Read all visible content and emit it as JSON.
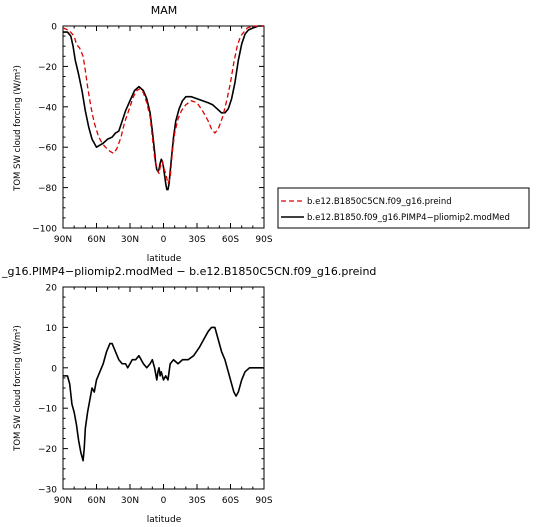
{
  "chart_data": [
    {
      "type": "line",
      "title": "MAM",
      "xlabel": "latitude",
      "ylabel": "TOM SW cloud forcing (W/m²)",
      "xlim": [
        90,
        -90
      ],
      "ylim": [
        -100,
        0
      ],
      "x_ticks": [
        90,
        60,
        30,
        0,
        -30,
        -60,
        -90
      ],
      "x_tick_labels": [
        "90N",
        "60N",
        "30N",
        "0",
        "30S",
        "60S",
        "90S"
      ],
      "y_ticks": [
        0,
        -20,
        -40,
        -60,
        -80,
        -100
      ],
      "y_tick_labels": [
        "0",
        "−20",
        "−40",
        "−60",
        "−80",
        "−100"
      ],
      "legend_position": "right",
      "series": [
        {
          "name": "b.e12.B1850C5CN.f09_g16.preind",
          "color": "#dd0000",
          "dash": "dashed",
          "points": [
            [
              90,
              -1
            ],
            [
              85,
              -2
            ],
            [
              80,
              -5
            ],
            [
              78,
              -9
            ],
            [
              75,
              -11
            ],
            [
              72,
              -15
            ],
            [
              70,
              -22
            ],
            [
              68,
              -30
            ],
            [
              65,
              -40
            ],
            [
              62,
              -48
            ],
            [
              58,
              -55
            ],
            [
              55,
              -58
            ],
            [
              52,
              -60
            ],
            [
              48,
              -62
            ],
            [
              45,
              -63
            ],
            [
              42,
              -61
            ],
            [
              38,
              -55
            ],
            [
              35,
              -48
            ],
            [
              30,
              -40
            ],
            [
              27,
              -35
            ],
            [
              24,
              -32
            ],
            [
              21,
              -31
            ],
            [
              18,
              -33
            ],
            [
              15,
              -38
            ],
            [
              12,
              -45
            ],
            [
              10,
              -55
            ],
            [
              8,
              -65
            ],
            [
              6,
              -70
            ],
            [
              5,
              -72
            ],
            [
              4,
              -73
            ],
            [
              3,
              -70
            ],
            [
              2,
              -68
            ],
            [
              1,
              -67
            ],
            [
              0,
              -70
            ],
            [
              -2,
              -73
            ],
            [
              -4,
              -78
            ],
            [
              -6,
              -75
            ],
            [
              -8,
              -62
            ],
            [
              -10,
              -53
            ],
            [
              -13,
              -46
            ],
            [
              -16,
              -42
            ],
            [
              -20,
              -39
            ],
            [
              -25,
              -37
            ],
            [
              -30,
              -38
            ],
            [
              -35,
              -42
            ],
            [
              -40,
              -47
            ],
            [
              -43,
              -51
            ],
            [
              -46,
              -53
            ],
            [
              -49,
              -51
            ],
            [
              -53,
              -45
            ],
            [
              -57,
              -36
            ],
            [
              -60,
              -28
            ],
            [
              -63,
              -18
            ],
            [
              -66,
              -10
            ],
            [
              -69,
              -5
            ],
            [
              -72,
              -3
            ],
            [
              -75,
              -1
            ],
            [
              -80,
              0
            ],
            [
              -85,
              0
            ],
            [
              -90,
              0
            ]
          ]
        },
        {
          "name": "b.e12.B1850.f09_g16.PIMP4−pliomip2.modMed",
          "color": "#000000",
          "dash": "solid",
          "points": [
            [
              90,
              -3
            ],
            [
              86,
              -3
            ],
            [
              83,
              -5
            ],
            [
              81,
              -10
            ],
            [
              79,
              -17
            ],
            [
              76,
              -24
            ],
            [
              73,
              -32
            ],
            [
              70,
              -42
            ],
            [
              67,
              -50
            ],
            [
              64,
              -56
            ],
            [
              60,
              -60
            ],
            [
              57,
              -59
            ],
            [
              54,
              -58
            ],
            [
              50,
              -56
            ],
            [
              46,
              -55
            ],
            [
              43,
              -53
            ],
            [
              40,
              -52
            ],
            [
              37,
              -47
            ],
            [
              34,
              -42
            ],
            [
              30,
              -37
            ],
            [
              26,
              -32
            ],
            [
              22,
              -30
            ],
            [
              18,
              -32
            ],
            [
              15,
              -36
            ],
            [
              12,
              -43
            ],
            [
              10,
              -52
            ],
            [
              8,
              -62
            ],
            [
              7,
              -68
            ],
            [
              6,
              -71
            ],
            [
              5,
              -72
            ],
            [
              4,
              -71
            ],
            [
              3,
              -68
            ],
            [
              2,
              -66
            ],
            [
              1,
              -67
            ],
            [
              0,
              -70
            ],
            [
              -1,
              -74
            ],
            [
              -2,
              -78
            ],
            [
              -3,
              -81
            ],
            [
              -4,
              -81
            ],
            [
              -5,
              -78
            ],
            [
              -7,
              -66
            ],
            [
              -9,
              -55
            ],
            [
              -11,
              -47
            ],
            [
              -14,
              -41
            ],
            [
              -17,
              -37
            ],
            [
              -20,
              -35
            ],
            [
              -25,
              -35
            ],
            [
              -30,
              -36
            ],
            [
              -35,
              -37
            ],
            [
              -40,
              -38
            ],
            [
              -44,
              -39
            ],
            [
              -48,
              -41
            ],
            [
              -52,
              -43
            ],
            [
              -55,
              -43
            ],
            [
              -58,
              -41
            ],
            [
              -61,
              -36
            ],
            [
              -64,
              -28
            ],
            [
              -67,
              -17
            ],
            [
              -70,
              -9
            ],
            [
              -73,
              -4
            ],
            [
              -76,
              -2
            ],
            [
              -80,
              -1
            ],
            [
              -85,
              0
            ],
            [
              -90,
              0
            ]
          ]
        }
      ]
    },
    {
      "type": "line",
      "title": "_g16.PIMP4−pliomip2.modMed − b.e12.B1850C5CN.f09_g16.preind",
      "xlabel": "latitude",
      "ylabel": "TOM SW cloud forcing (W/m²)",
      "xlim": [
        90,
        -90
      ],
      "ylim": [
        -30,
        20
      ],
      "x_ticks": [
        90,
        60,
        30,
        0,
        -30,
        -60,
        -90
      ],
      "x_tick_labels": [
        "90N",
        "60N",
        "30N",
        "0",
        "30S",
        "60S",
        "90S"
      ],
      "y_ticks": [
        20,
        10,
        0,
        -10,
        -20,
        -30
      ],
      "y_tick_labels": [
        "20",
        "10",
        "0",
        "−10",
        "−20",
        "−30"
      ],
      "series": [
        {
          "color": "#000000",
          "dash": "solid",
          "points": [
            [
              90,
              -2
            ],
            [
              86,
              -2
            ],
            [
              84,
              -4
            ],
            [
              82,
              -9
            ],
            [
              80,
              -11
            ],
            [
              78,
              -14
            ],
            [
              76,
              -18
            ],
            [
              74,
              -21
            ],
            [
              72,
              -23
            ],
            [
              71,
              -20
            ],
            [
              70,
              -15
            ],
            [
              68,
              -11
            ],
            [
              66,
              -8
            ],
            [
              64,
              -5
            ],
            [
              62,
              -6
            ],
            [
              60,
              -3
            ],
            [
              57,
              -1
            ],
            [
              54,
              1
            ],
            [
              51,
              4
            ],
            [
              48,
              6
            ],
            [
              46,
              6
            ],
            [
              43,
              4
            ],
            [
              40,
              2
            ],
            [
              37,
              1
            ],
            [
              34,
              1
            ],
            [
              32,
              0
            ],
            [
              30,
              1
            ],
            [
              28,
              2
            ],
            [
              25,
              2
            ],
            [
              22,
              3
            ],
            [
              18,
              1
            ],
            [
              15,
              0
            ],
            [
              12,
              1
            ],
            [
              10,
              2
            ],
            [
              8,
              0
            ],
            [
              6,
              -3
            ],
            [
              5,
              -1
            ],
            [
              4,
              0
            ],
            [
              3,
              -2
            ],
            [
              2,
              -1
            ],
            [
              0,
              -3
            ],
            [
              -2,
              -2
            ],
            [
              -4,
              -3
            ],
            [
              -6,
              1
            ],
            [
              -9,
              2
            ],
            [
              -13,
              1
            ],
            [
              -17,
              2
            ],
            [
              -22,
              2
            ],
            [
              -27,
              3
            ],
            [
              -32,
              5
            ],
            [
              -36,
              7
            ],
            [
              -40,
              9
            ],
            [
              -43,
              10
            ],
            [
              -46,
              10
            ],
            [
              -49,
              7
            ],
            [
              -52,
              4
            ],
            [
              -55,
              2
            ],
            [
              -58,
              -1
            ],
            [
              -61,
              -4
            ],
            [
              -63,
              -6
            ],
            [
              -65,
              -7
            ],
            [
              -67,
              -6
            ],
            [
              -70,
              -3
            ],
            [
              -73,
              -1
            ],
            [
              -77,
              0
            ],
            [
              -82,
              0
            ],
            [
              -90,
              0
            ]
          ]
        }
      ]
    }
  ]
}
